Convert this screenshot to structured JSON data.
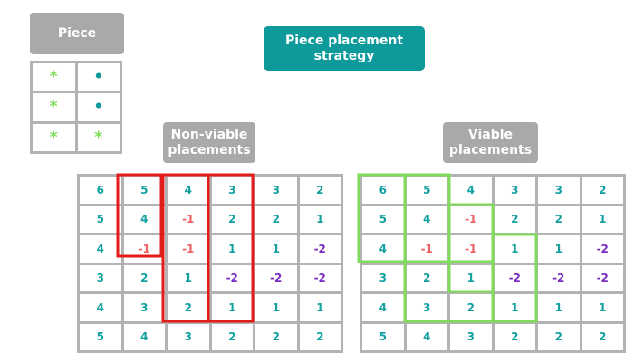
{
  "piece_label": "Piece",
  "title": [
    "Piece placement",
    "strategy"
  ],
  "nonviable_label": [
    "Non-viable",
    "placements"
  ],
  "viable_label": [
    "Viable",
    "placements"
  ],
  "piece_cells": [
    "*",
    "•",
    "*",
    "•",
    "*",
    "*"
  ],
  "piece_colors": {
    "*": "#7ddc5a",
    "•": "#0e9a9a"
  },
  "grid": [
    [
      "6",
      "5",
      "4",
      "3",
      "3",
      "2"
    ],
    [
      "5",
      "4",
      "-1",
      "2",
      "2",
      "1"
    ],
    [
      "4",
      "-1",
      "-1",
      "1",
      "1",
      "-2"
    ],
    [
      "3",
      "2",
      "1",
      "-2",
      "-2",
      "-2"
    ],
    [
      "4",
      "3",
      "2",
      "1",
      "1",
      "1"
    ],
    [
      "5",
      "4",
      "3",
      "2",
      "2",
      "2"
    ]
  ],
  "colors": {
    "teal": "#0e9a9a",
    "gray": "#a9a9a9",
    "red_outline": "#e41b1b",
    "green_outline": "#7fdc5a",
    "minus_one": "#f06060",
    "minus_two": "#7a2bbf"
  }
}
